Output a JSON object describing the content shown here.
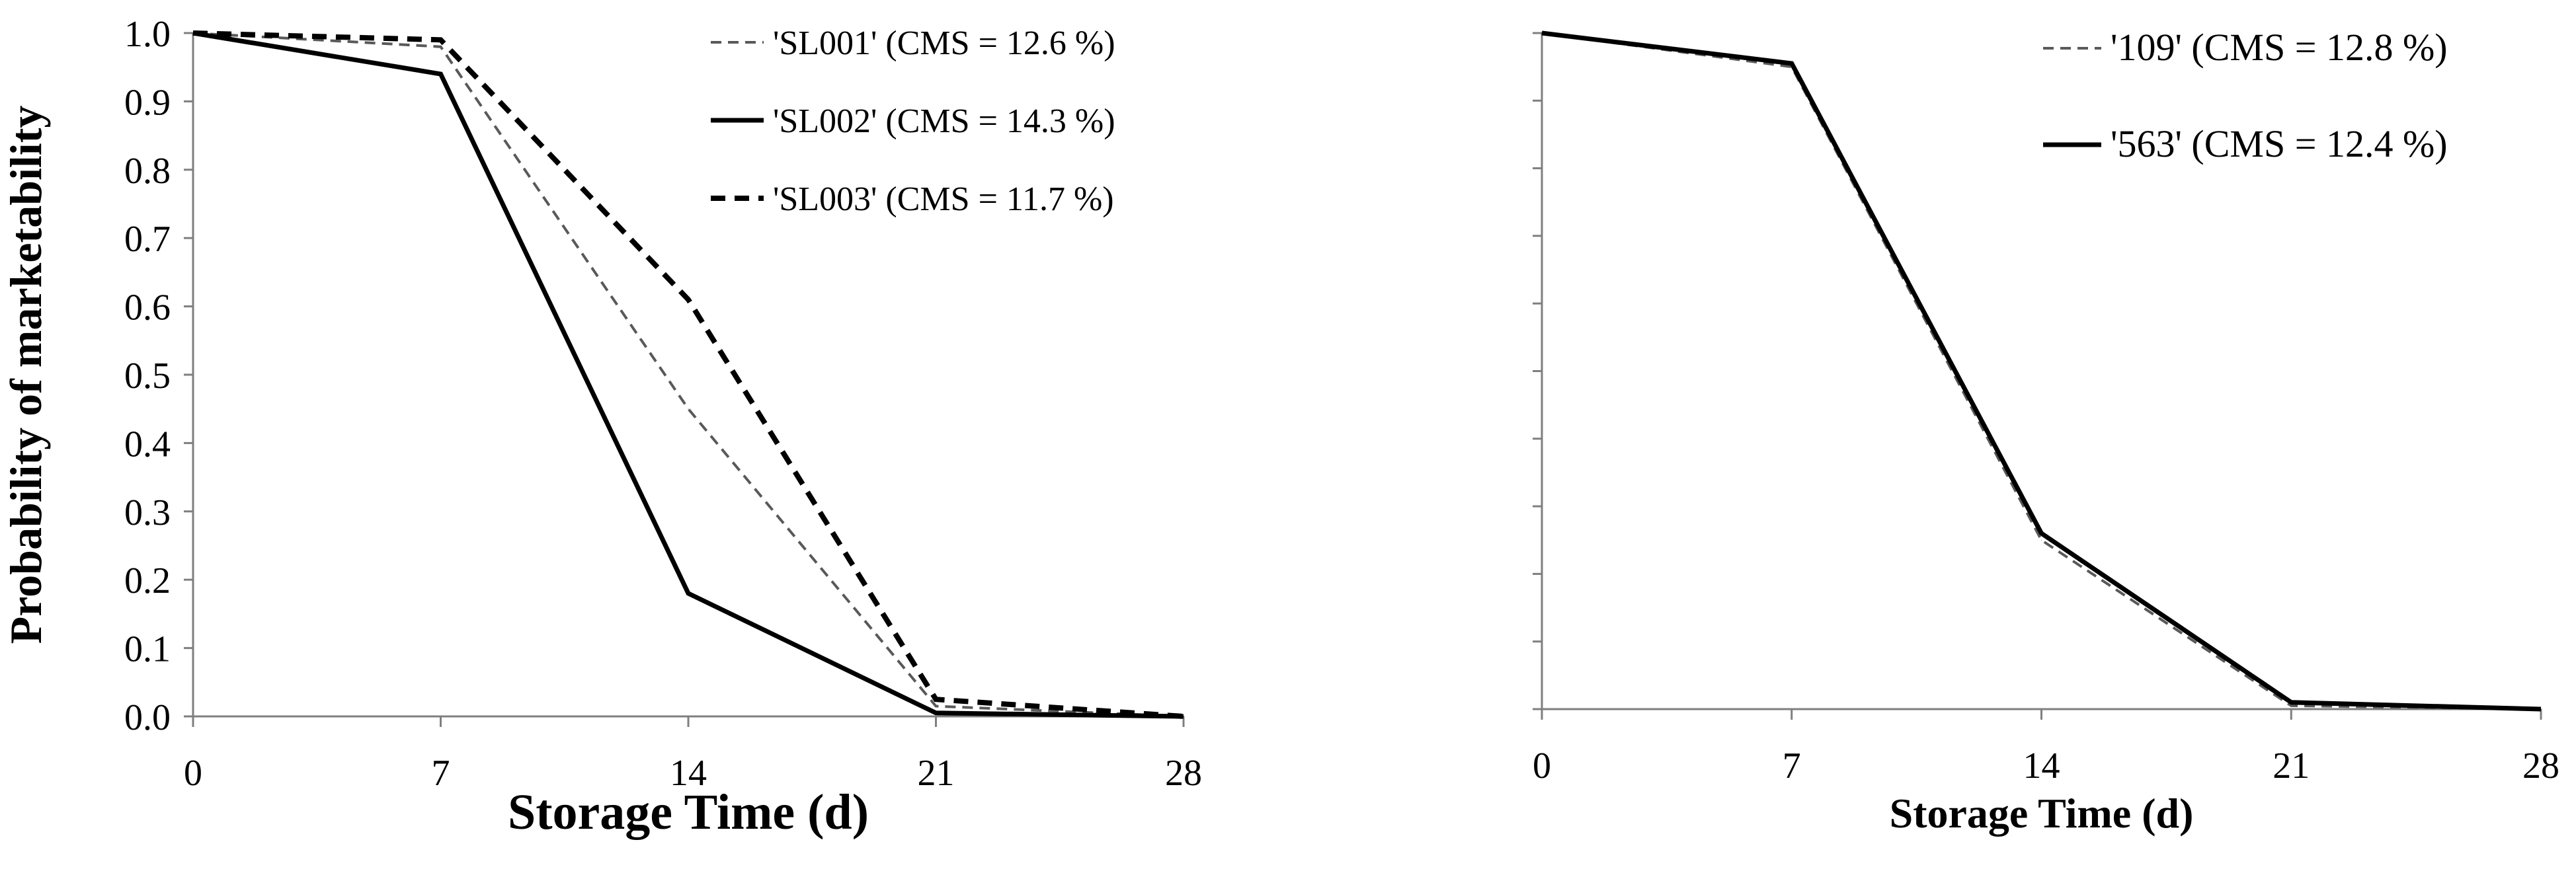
{
  "colors": {
    "axis": "#7f7f7f",
    "series_black": "#000000",
    "series_gray": "#595959"
  },
  "chart_data": [
    {
      "type": "line",
      "xlabel": "Storage Time (d)",
      "ylabel": "Probability of marketability",
      "xlim": [
        0,
        28
      ],
      "ylim": [
        0,
        1
      ],
      "x_ticks": [
        "0",
        "7",
        "14",
        "21",
        "28"
      ],
      "y_ticks": [
        "0.0",
        "0.1",
        "0.2",
        "0.3",
        "0.4",
        "0.5",
        "0.6",
        "0.7",
        "0.8",
        "0.9",
        "1.0"
      ],
      "grid": false,
      "legend_position": "top-right",
      "x": [
        0,
        7,
        14,
        21,
        28
      ],
      "series": [
        {
          "name": "'SL001' (CMS = 12.6 %)",
          "values": [
            1.0,
            0.98,
            0.45,
            0.015,
            0.0
          ],
          "style": "dashed-gray"
        },
        {
          "name": "'SL002' (CMS = 14.3 %)",
          "values": [
            1.0,
            0.94,
            0.18,
            0.005,
            0.0
          ],
          "style": "solid"
        },
        {
          "name": "'SL003' (CMS = 11.7 %)",
          "values": [
            1.0,
            0.99,
            0.61,
            0.025,
            0.0
          ],
          "style": "dashed"
        }
      ]
    },
    {
      "type": "line",
      "xlabel": "Storage Time (d)",
      "ylabel": "",
      "xlim": [
        0,
        28
      ],
      "ylim": [
        0,
        1
      ],
      "x_ticks": [
        "0",
        "7",
        "14",
        "21",
        "28"
      ],
      "y_ticks": [],
      "grid": false,
      "legend_position": "top-right",
      "x": [
        0,
        7,
        14,
        21,
        28
      ],
      "series": [
        {
          "name": "'109' (CMS = 12.8 %)",
          "values": [
            1.0,
            0.95,
            0.25,
            0.005,
            0.0
          ],
          "style": "dashed-gray"
        },
        {
          "name": "'563' (CMS = 12.4 %)",
          "values": [
            1.0,
            0.955,
            0.26,
            0.01,
            0.0
          ],
          "style": "solid"
        }
      ]
    }
  ]
}
